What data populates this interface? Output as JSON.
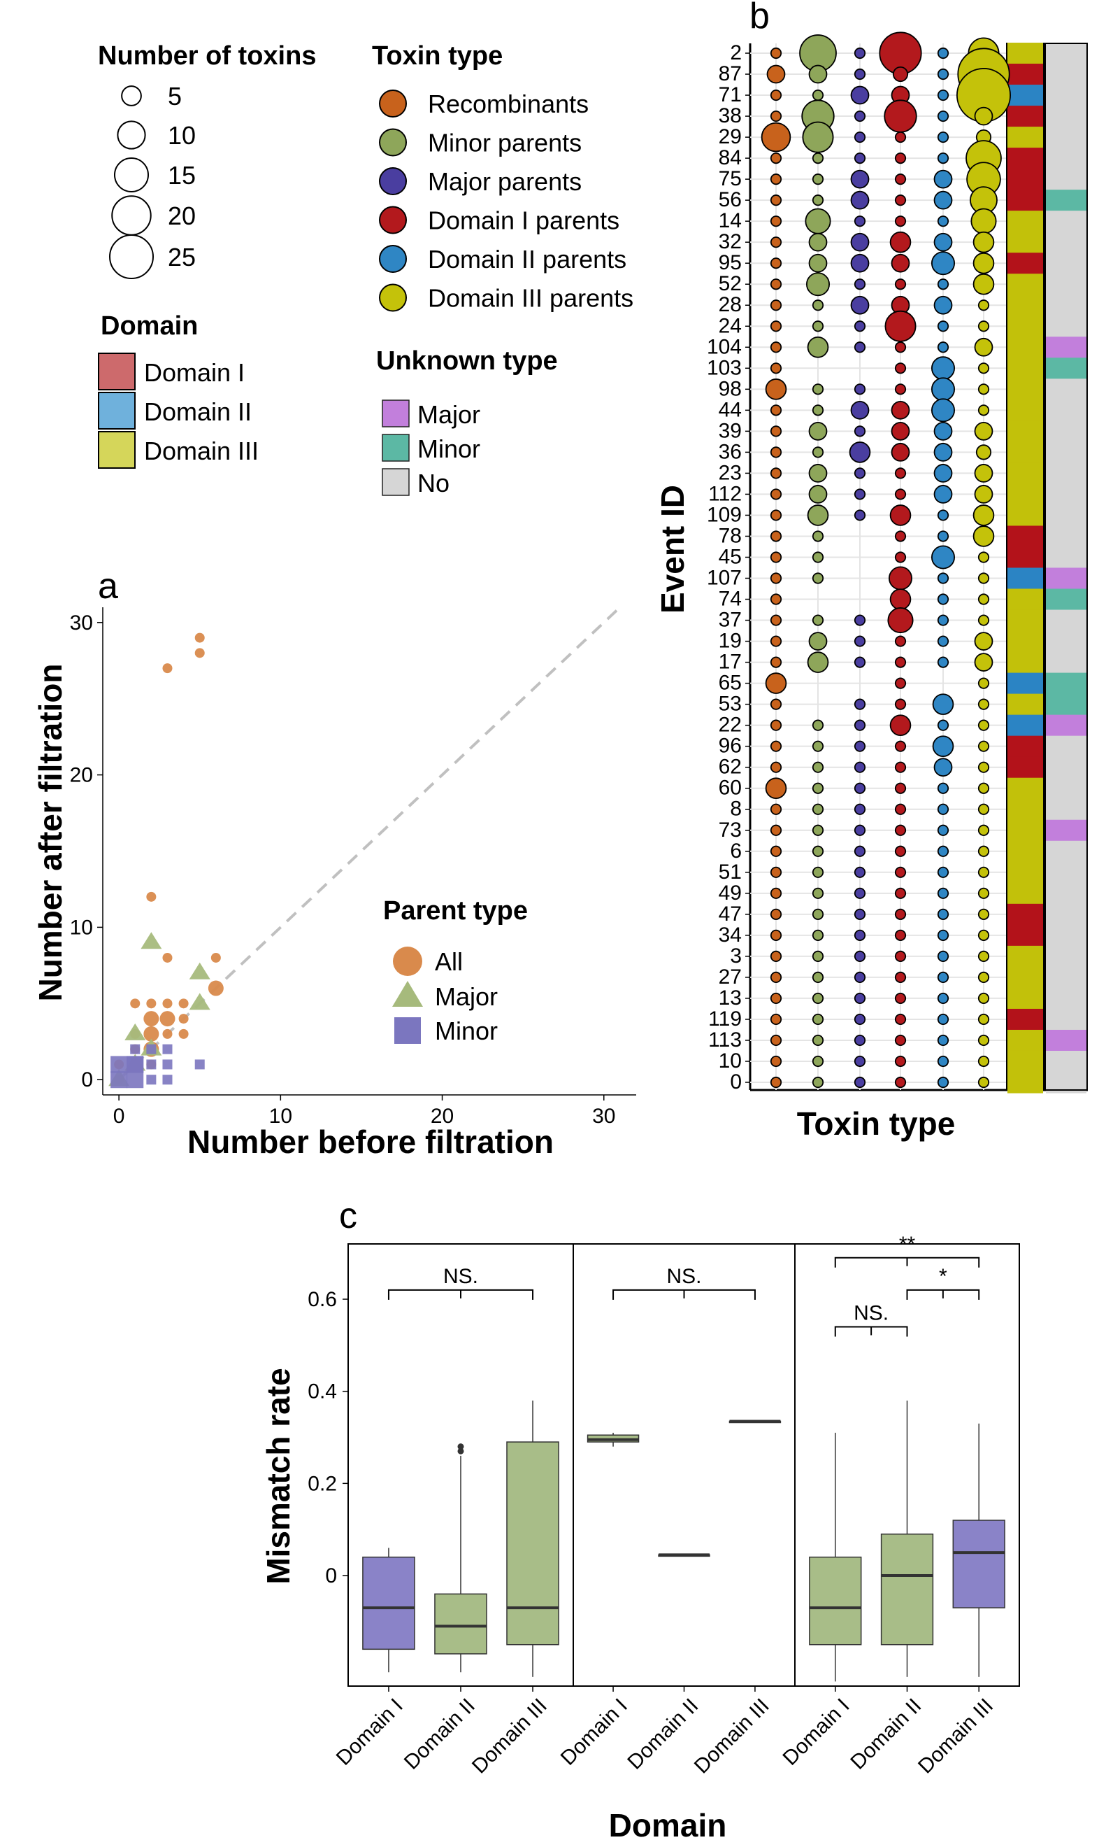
{
  "panel_labels": {
    "a": "a",
    "b": "b",
    "c": "c"
  },
  "colors": {
    "recombinants": "#c8621c",
    "minor_parents": "#8ea65a",
    "major_parents": "#4a3ea0",
    "domain1_parents": "#b3191d",
    "domain2_parents": "#2f86c4",
    "domain3_parents": "#c4c20a",
    "domain1_fill": "#b3121a",
    "domain2_fill": "#2b84c4",
    "domain3_fill": "#c2c10a",
    "unknown_major": "#c27fdc",
    "unknown_minor": "#5cb8a4",
    "unknown_no": "#d6d6d6",
    "all": "#d98a4c",
    "major": "#a6ba7c",
    "minor": "#7b76bf",
    "box_green": "#a8bd88",
    "box_purple": "#8a83c8"
  },
  "legend": {
    "number_title": "Number of toxins",
    "number_items": [
      "5",
      "10",
      "15",
      "20",
      "25"
    ],
    "toxin_title": "Toxin type",
    "toxin_items": [
      "Recombinants",
      "Minor parents",
      "Major parents",
      "Domain I parents",
      "Domain II parents",
      "Domain III parents"
    ],
    "domain_title": "Domain",
    "domain_items": [
      "Domain I",
      "Domain II",
      "Domain III"
    ],
    "unknown_title": "Unknown type",
    "unknown_items": [
      "Major",
      "Minor",
      "No"
    ]
  },
  "chart_data": [
    {
      "id": "a",
      "type": "scatter",
      "xlabel": "Number before filtration",
      "ylabel": "Number after filtration",
      "xlim": [
        -1,
        32
      ],
      "ylim": [
        -1,
        31
      ],
      "xticks": [
        "0",
        "10",
        "20",
        "30"
      ],
      "yticks": [
        "0",
        "10",
        "20",
        "30"
      ],
      "reference_line": "y = x (dashed)",
      "legend_title": "Parent type",
      "legend_items": [
        "All",
        "Major",
        "Minor"
      ],
      "series": [
        {
          "name": "All",
          "points": [
            [
              5,
              29
            ],
            [
              5,
              28
            ],
            [
              3,
              27
            ],
            [
              2,
              12
            ],
            [
              3,
              8
            ],
            [
              6,
              8
            ],
            [
              2,
              5
            ],
            [
              1,
              5
            ],
            [
              3,
              5
            ],
            [
              4,
              5
            ],
            [
              2,
              4
            ],
            [
              3,
              4
            ],
            [
              4,
              4
            ],
            [
              2,
              3
            ],
            [
              3,
              3
            ],
            [
              1,
              3
            ],
            [
              2,
              2
            ],
            [
              4,
              3
            ],
            [
              6,
              6
            ],
            [
              1,
              2
            ],
            [
              0,
              1
            ],
            [
              1,
              1
            ],
            [
              2,
              1
            ],
            [
              0,
              0
            ]
          ]
        },
        {
          "name": "Major",
          "points": [
            [
              2,
              9
            ],
            [
              5,
              7
            ],
            [
              5,
              5
            ],
            [
              1,
              3
            ],
            [
              2,
              2
            ],
            [
              1,
              1
            ],
            [
              0,
              0
            ]
          ]
        },
        {
          "name": "Minor",
          "points": [
            [
              1,
              1
            ],
            [
              1,
              2
            ],
            [
              2,
              2
            ],
            [
              3,
              2
            ],
            [
              3,
              1
            ],
            [
              5,
              1
            ],
            [
              0,
              0
            ],
            [
              1,
              0
            ],
            [
              2,
              0
            ],
            [
              3,
              0
            ],
            [
              1,
              1
            ],
            [
              0,
              1
            ],
            [
              2,
              1
            ]
          ]
        }
      ]
    },
    {
      "id": "b",
      "type": "bubble-grid",
      "xlabel": "Toxin type",
      "ylabel": "Event ID",
      "columns": [
        "Recombinants",
        "Minor parents",
        "Major parents",
        "Domain I parents",
        "Domain II parents",
        "Domain III parents"
      ],
      "event_ids": [
        "2",
        "87",
        "71",
        "38",
        "29",
        "84",
        "75",
        "56",
        "14",
        "32",
        "95",
        "52",
        "28",
        "24",
        "104",
        "103",
        "98",
        "44",
        "39",
        "36",
        "23",
        "112",
        "109",
        "78",
        "45",
        "107",
        "74",
        "37",
        "19",
        "17",
        "65",
        "53",
        "22",
        "96",
        "62",
        "60",
        "8",
        "73",
        "6",
        "51",
        "49",
        "47",
        "34",
        "3",
        "27",
        "13",
        "119",
        "113",
        "10",
        "0"
      ],
      "counts": [
        [
          1,
          13,
          1,
          17,
          1,
          9
        ],
        [
          3,
          3,
          1,
          2,
          1,
          26
        ],
        [
          1,
          1,
          3,
          3,
          1,
          28
        ],
        [
          1,
          10,
          1,
          10,
          1,
          3
        ],
        [
          8,
          9,
          1,
          1,
          1,
          2
        ],
        [
          1,
          1,
          1,
          1,
          1,
          12
        ],
        [
          1,
          1,
          3,
          1,
          3,
          11
        ],
        [
          1,
          1,
          3,
          1,
          3,
          7
        ],
        [
          1,
          6,
          1,
          1,
          1,
          6
        ],
        [
          1,
          3,
          3,
          4,
          3,
          4
        ],
        [
          1,
          3,
          3,
          3,
          5,
          4
        ],
        [
          1,
          5,
          1,
          1,
          1,
          4
        ],
        [
          1,
          1,
          3,
          3,
          3,
          1
        ],
        [
          1,
          1,
          1,
          9,
          1,
          1
        ],
        [
          1,
          4,
          1,
          1,
          1,
          3
        ],
        [
          1,
          0,
          0,
          1,
          5,
          1
        ],
        [
          4,
          1,
          1,
          1,
          5,
          1
        ],
        [
          1,
          1,
          3,
          3,
          5,
          1
        ],
        [
          1,
          3,
          1,
          3,
          3,
          3
        ],
        [
          1,
          1,
          4,
          3,
          3,
          2
        ],
        [
          1,
          3,
          1,
          1,
          3,
          3
        ],
        [
          1,
          3,
          1,
          1,
          3,
          3
        ],
        [
          1,
          4,
          1,
          4,
          1,
          4
        ],
        [
          1,
          1,
          0,
          1,
          1,
          4
        ],
        [
          1,
          1,
          0,
          1,
          5,
          1
        ],
        [
          1,
          1,
          0,
          5,
          1,
          1
        ],
        [
          1,
          0,
          0,
          4,
          1,
          1
        ],
        [
          1,
          1,
          1,
          6,
          1,
          1
        ],
        [
          1,
          3,
          1,
          1,
          1,
          3
        ],
        [
          1,
          4,
          1,
          1,
          1,
          3
        ],
        [
          4,
          0,
          0,
          1,
          0,
          1
        ],
        [
          1,
          0,
          1,
          1,
          4,
          1
        ],
        [
          1,
          1,
          1,
          4,
          1,
          1
        ],
        [
          1,
          1,
          1,
          1,
          4,
          1
        ],
        [
          1,
          1,
          1,
          1,
          3,
          1
        ],
        [
          4,
          1,
          1,
          1,
          1,
          1
        ],
        [
          1,
          1,
          1,
          1,
          1,
          1
        ],
        [
          1,
          1,
          1,
          1,
          1,
          1
        ],
        [
          1,
          1,
          1,
          1,
          1,
          1
        ],
        [
          1,
          1,
          1,
          1,
          1,
          1
        ],
        [
          1,
          1,
          1,
          1,
          1,
          1
        ],
        [
          1,
          1,
          1,
          1,
          1,
          1
        ],
        [
          1,
          1,
          1,
          1,
          1,
          1
        ],
        [
          1,
          1,
          1,
          1,
          1,
          1
        ],
        [
          1,
          1,
          1,
          1,
          1,
          1
        ],
        [
          1,
          1,
          1,
          1,
          1,
          1
        ],
        [
          1,
          1,
          1,
          1,
          1,
          1
        ],
        [
          1,
          1,
          1,
          1,
          1,
          1
        ],
        [
          1,
          1,
          1,
          1,
          1,
          1
        ],
        [
          1,
          1,
          1,
          1,
          1,
          1
        ]
      ],
      "domain": [
        "III",
        "I",
        "II",
        "I",
        "III",
        "I",
        "I",
        "I",
        "III",
        "III",
        "I",
        "III",
        "III",
        "III",
        "III",
        "III",
        "III",
        "III",
        "III",
        "III",
        "III",
        "III",
        "III",
        "I",
        "I",
        "II",
        "III",
        "III",
        "III",
        "III",
        "II",
        "III",
        "II",
        "I",
        "I",
        "III",
        "III",
        "III",
        "III",
        "III",
        "III",
        "I",
        "I",
        "III",
        "III",
        "III",
        "I",
        "III",
        "III",
        "III"
      ],
      "unknown": [
        "No",
        "No",
        "No",
        "No",
        "No",
        "No",
        "No",
        "Minor",
        "No",
        "No",
        "No",
        "No",
        "No",
        "No",
        "Major",
        "Minor",
        "No",
        "No",
        "No",
        "No",
        "No",
        "No",
        "No",
        "No",
        "No",
        "Major",
        "Minor",
        "No",
        "No",
        "No",
        "Minor",
        "Minor",
        "Major",
        "No",
        "No",
        "No",
        "No",
        "Major",
        "No",
        "No",
        "No",
        "No",
        "No",
        "No",
        "No",
        "No",
        "No",
        "Major",
        "No",
        "No"
      ]
    },
    {
      "id": "c",
      "type": "box",
      "xlabel": "Domain",
      "ylabel": "Mismatch rate",
      "yticks": [
        "0",
        "0.2",
        "0.4",
        "0.6"
      ],
      "ylim": [
        -0.24,
        0.72
      ],
      "panels": [
        {
          "boxes": [
            {
              "category": "Domain I",
              "fill": "purple",
              "min": -0.21,
              "q1": -0.16,
              "median": -0.07,
              "q3": 0.04,
              "max": 0.06
            },
            {
              "category": "Domain II",
              "fill": "green",
              "min": -0.21,
              "q1": -0.17,
              "median": -0.11,
              "q3": -0.04,
              "max": 0.26,
              "outliers": [
                0.27,
                0.28
              ]
            },
            {
              "category": "Domain III",
              "fill": "green",
              "min": -0.22,
              "q1": -0.15,
              "median": -0.07,
              "q3": 0.29,
              "max": 0.38
            }
          ],
          "brackets": [
            {
              "from": 0,
              "to": 2,
              "y": 0.62,
              "label": "NS."
            }
          ]
        },
        {
          "boxes": [
            {
              "category": "Domain I",
              "fill": "green",
              "min": 0.28,
              "q1": 0.29,
              "median": 0.295,
              "q3": 0.305,
              "max": 0.31
            },
            {
              "category": "Domain II",
              "fill": "green",
              "min": 0.045,
              "q1": 0.045,
              "median": 0.045,
              "q3": 0.045,
              "max": 0.045
            },
            {
              "category": "Domain III",
              "fill": "green",
              "min": 0.335,
              "q1": 0.335,
              "median": 0.335,
              "q3": 0.335,
              "max": 0.335
            }
          ],
          "brackets": [
            {
              "from": 0,
              "to": 2,
              "y": 0.62,
              "label": "NS."
            }
          ]
        },
        {
          "boxes": [
            {
              "category": "Domain I",
              "fill": "green",
              "min": -0.23,
              "q1": -0.15,
              "median": -0.07,
              "q3": 0.04,
              "max": 0.31
            },
            {
              "category": "Domain II",
              "fill": "green",
              "min": -0.22,
              "q1": -0.15,
              "median": 0.0,
              "q3": 0.09,
              "max": 0.38
            },
            {
              "category": "Domain III",
              "fill": "purple",
              "min": -0.22,
              "q1": -0.07,
              "median": 0.05,
              "q3": 0.12,
              "max": 0.33
            }
          ],
          "brackets": [
            {
              "from": 0,
              "to": 2,
              "y": 0.69,
              "label": "**"
            },
            {
              "from": 1,
              "to": 2,
              "y": 0.62,
              "label": "*"
            },
            {
              "from": 0,
              "to": 1,
              "y": 0.54,
              "label": "NS."
            }
          ]
        }
      ]
    }
  ]
}
